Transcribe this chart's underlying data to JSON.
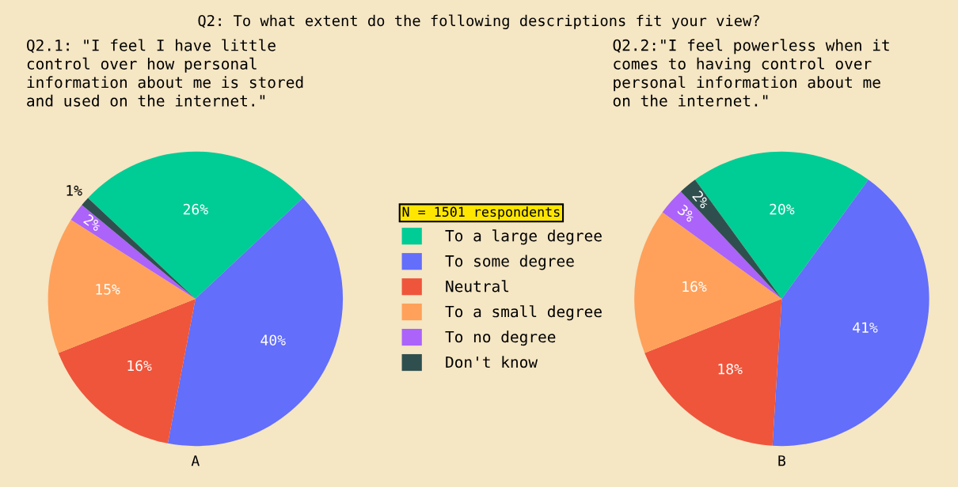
{
  "chart_data": [
    {
      "type": "pie",
      "title": "Q2: To what extent do the following descriptions fit your view?",
      "subtitle": "Q2.1: \"I feel I have little\ncontrol over how personal\ninformation about me is stored\nand used on the internet.\"",
      "xlabel": "A",
      "legend_title": "N = 1501 respondents",
      "legend": "right",
      "value_labels": [
        "26%",
        "40%",
        "16%",
        "15%",
        "2%",
        "1%"
      ],
      "categories": [
        "To a large degree",
        "To some degree",
        "Neutral",
        "To a small degree",
        "To no degree",
        "Don't know"
      ],
      "values": [
        26,
        40,
        16,
        15,
        2,
        1
      ],
      "colors": [
        "#00cc96",
        "#636efa",
        "#ef553b",
        "#ffa15a",
        "#ab63fa",
        "#2f4f4f"
      ]
    },
    {
      "type": "pie",
      "subtitle": "Q2.2:\"I feel powerless when it\ncomes to having control over\npersonal information about me\non the internet.\"",
      "xlabel": "B",
      "value_labels": [
        "20%",
        "41%",
        "18%",
        "16%",
        "3%",
        "2%"
      ],
      "categories": [
        null,
        null,
        null,
        null,
        null,
        null
      ],
      "values": [
        20,
        41,
        18,
        16,
        3,
        2
      ],
      "colors": [
        "#00cc96",
        "#636efa",
        "#ef553b",
        "#ffa15a",
        "#ab63fa",
        "#2f4f4f"
      ]
    }
  ]
}
